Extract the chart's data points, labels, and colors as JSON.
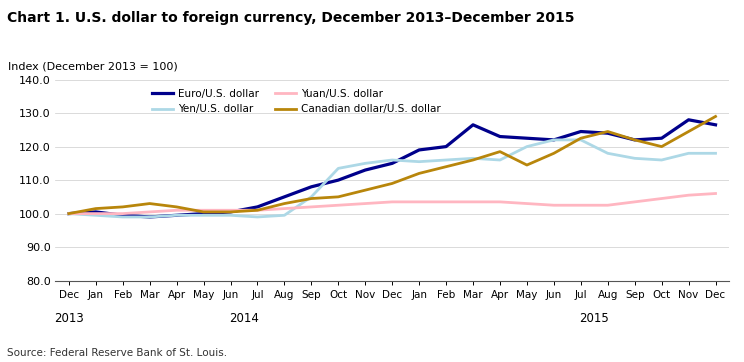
{
  "title": "Chart 1. U.S. dollar to foreign currency, December 2013–December 2015",
  "ylabel": "Index (December 2013 = 100)",
  "source": "Source: Federal Reserve Bank of St. Louis.",
  "xlabels": [
    "Dec",
    "Jan",
    "Feb",
    "Mar",
    "Apr",
    "May",
    "Jun",
    "Jul",
    "Aug",
    "Sep",
    "Oct",
    "Nov",
    "Dec",
    "Jan",
    "Feb",
    "Mar",
    "Apr",
    "May",
    "Jun",
    "Jul",
    "Aug",
    "Sep",
    "Oct",
    "Nov",
    "Dec"
  ],
  "ylim": [
    80.0,
    140.0
  ],
  "yticks": [
    80.0,
    90.0,
    100.0,
    110.0,
    120.0,
    130.0,
    140.0
  ],
  "series": {
    "Euro/U.S. dollar": {
      "color": "#00008B",
      "linewidth": 2.3,
      "values": [
        100.0,
        100.5,
        99.5,
        99.0,
        99.5,
        100.0,
        100.5,
        102.0,
        105.0,
        108.0,
        110.0,
        113.0,
        115.0,
        119.0,
        120.0,
        126.5,
        123.0,
        122.5,
        122.0,
        124.5,
        124.0,
        122.0,
        122.5,
        128.0,
        126.5
      ]
    },
    "Yen/U.S. dollar": {
      "color": "#ADD8E6",
      "linewidth": 2.0,
      "values": [
        100.0,
        99.5,
        99.0,
        99.0,
        99.5,
        99.5,
        99.5,
        99.0,
        99.5,
        105.0,
        113.5,
        115.0,
        116.0,
        115.5,
        116.0,
        116.5,
        116.0,
        120.0,
        122.0,
        122.0,
        118.0,
        116.5,
        116.0,
        118.0,
        118.0
      ]
    },
    "Yuan/U.S. dollar": {
      "color": "#FFB6C1",
      "linewidth": 2.0,
      "values": [
        100.0,
        100.0,
        100.0,
        100.5,
        101.0,
        101.0,
        101.0,
        101.0,
        101.5,
        102.0,
        102.5,
        103.0,
        103.5,
        103.5,
        103.5,
        103.5,
        103.5,
        103.0,
        102.5,
        102.5,
        102.5,
        103.5,
        104.5,
        105.5,
        106.0
      ]
    },
    "Canadian dollar/U.S. dollar": {
      "color": "#B8860B",
      "linewidth": 2.0,
      "values": [
        100.0,
        101.5,
        102.0,
        103.0,
        102.0,
        100.5,
        100.5,
        101.0,
        103.0,
        104.5,
        105.0,
        107.0,
        109.0,
        112.0,
        114.0,
        116.0,
        118.5,
        114.5,
        118.0,
        122.5,
        124.5,
        122.0,
        120.0,
        124.5,
        129.0
      ]
    }
  },
  "legend_entries": [
    "Euro/U.S. dollar",
    "Yen/U.S. dollar",
    "Yuan/U.S. dollar",
    "Canadian dollar/U.S. dollar"
  ],
  "year_labels": [
    [
      "2013",
      0
    ],
    [
      "2014",
      6.5
    ],
    [
      "2015",
      19.5
    ]
  ]
}
